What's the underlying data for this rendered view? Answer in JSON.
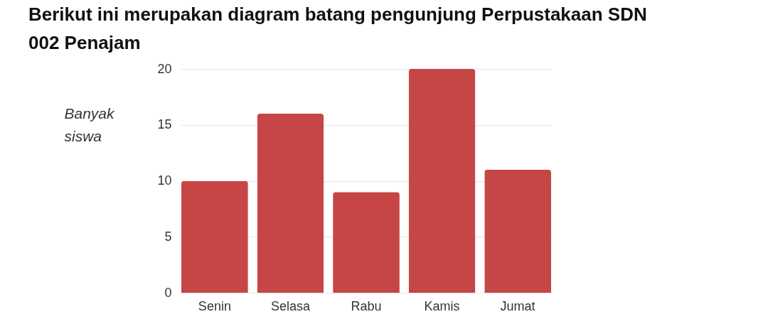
{
  "chart_data": {
    "type": "bar",
    "title": "Berikut ini merupakan diagram batang pengunjung Perpustakaan SDN 002 Penajam",
    "ylabel": "Banyak siswa",
    "categories": [
      "Senin",
      "Selasa",
      "Rabu",
      "Kamis",
      "Jumat"
    ],
    "values": [
      10,
      16,
      9,
      20,
      11
    ],
    "color": "#c64545",
    "ylim": [
      0,
      20
    ],
    "yticks": [
      0,
      5,
      10,
      15,
      20
    ],
    "grid": "y"
  }
}
